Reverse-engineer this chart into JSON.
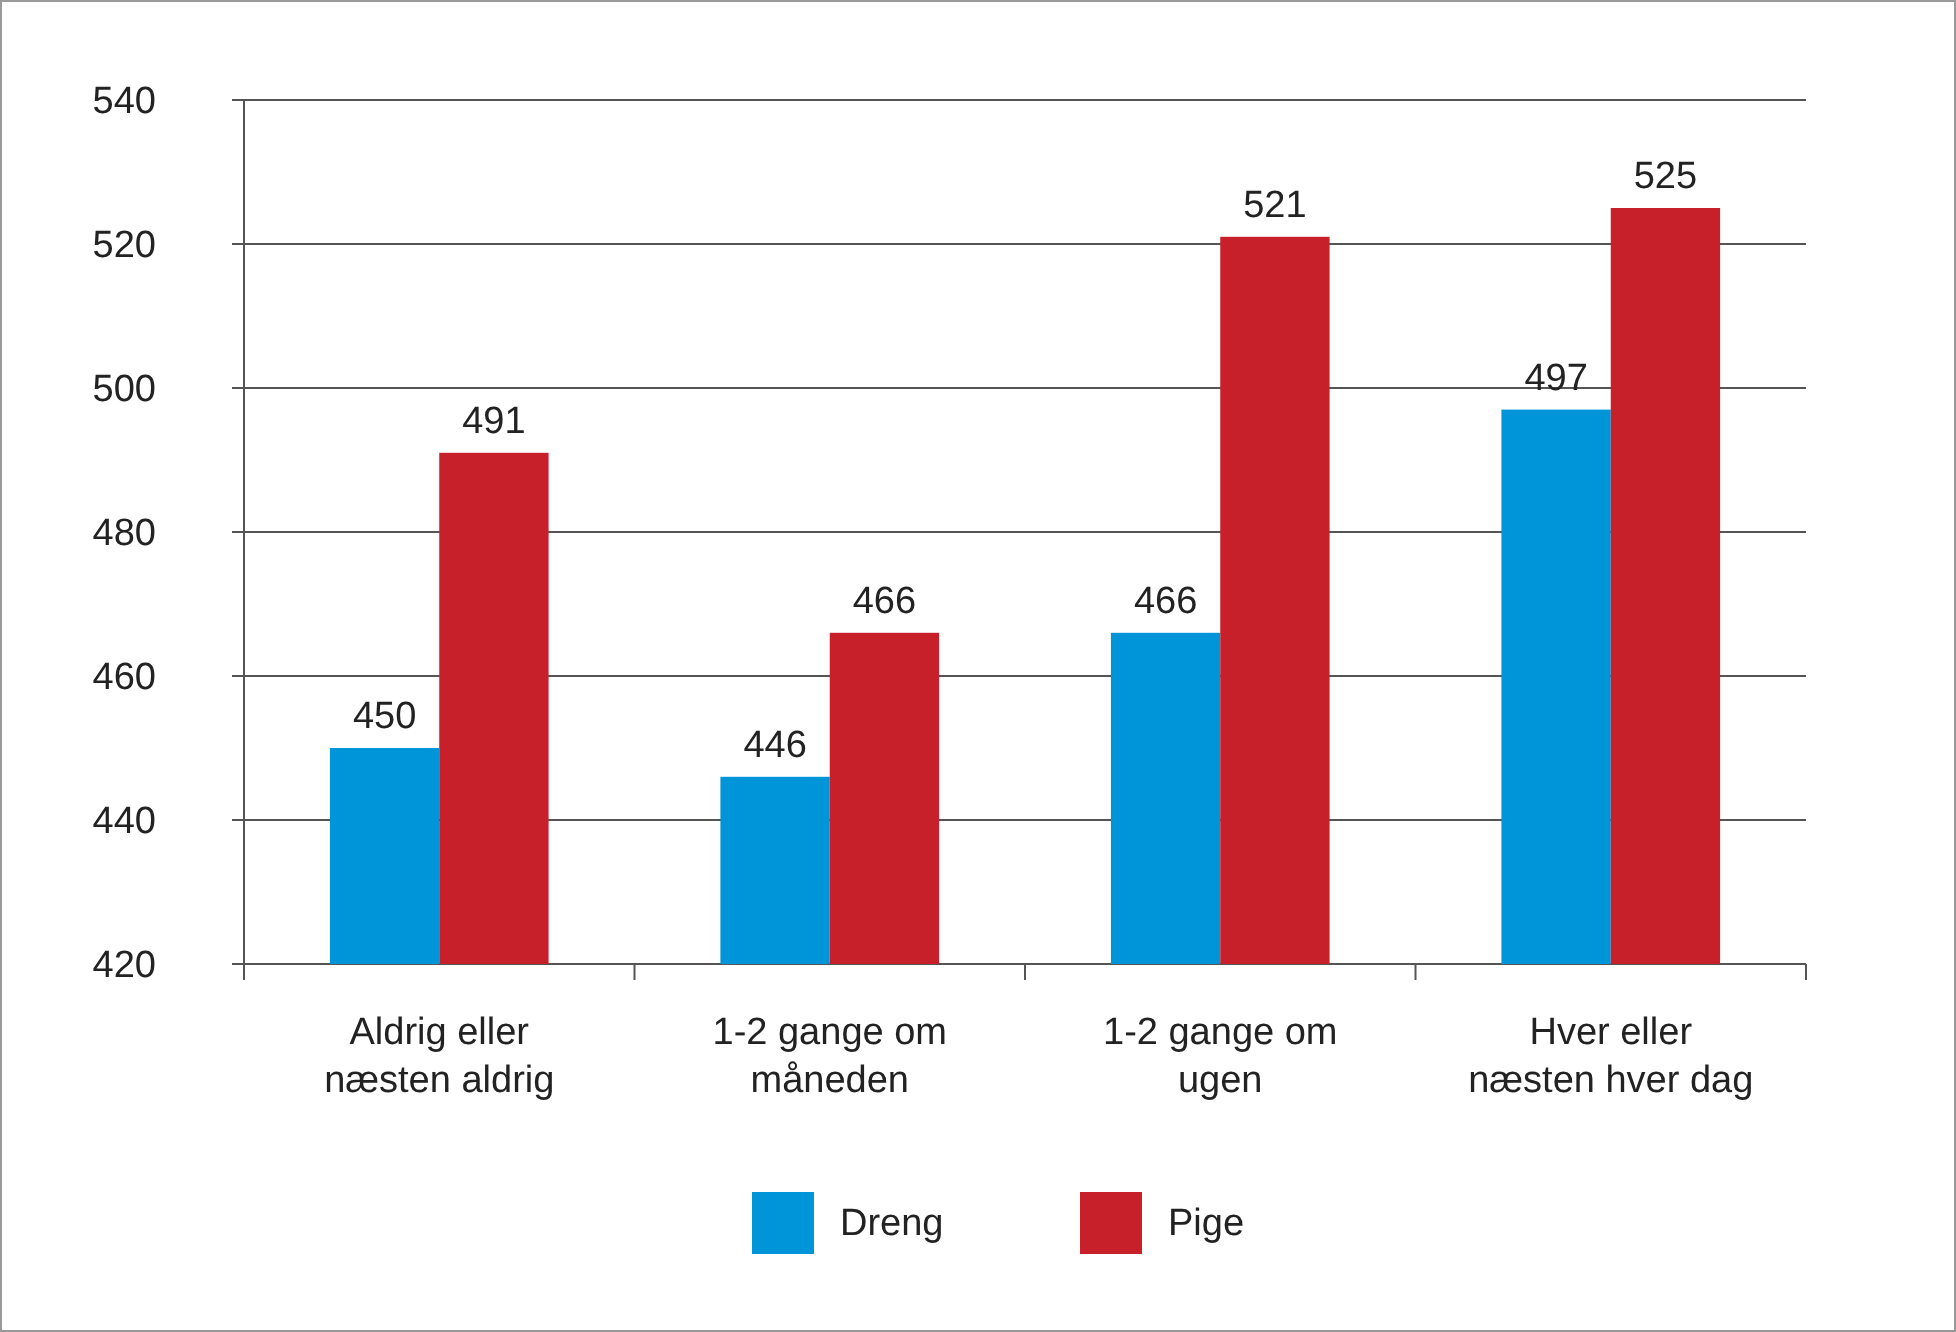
{
  "chart_data": {
    "type": "bar",
    "categories": [
      "Aldrig eller næsten aldrig",
      "1-2 gange om måneden",
      "1-2 gange om ugen",
      "Hver eller næsten hver dag"
    ],
    "series": [
      {
        "name": "Dreng",
        "color": "#0095d9",
        "values": [
          450,
          446,
          466,
          497
        ]
      },
      {
        "name": "Pige",
        "color": "#c8202a",
        "values": [
          491,
          466,
          521,
          525
        ]
      }
    ],
    "ylim": [
      420,
      540
    ],
    "yticks": [
      420,
      440,
      460,
      480,
      500,
      520,
      540
    ],
    "grid": "y",
    "data_labels": true,
    "legend": "bottom"
  }
}
